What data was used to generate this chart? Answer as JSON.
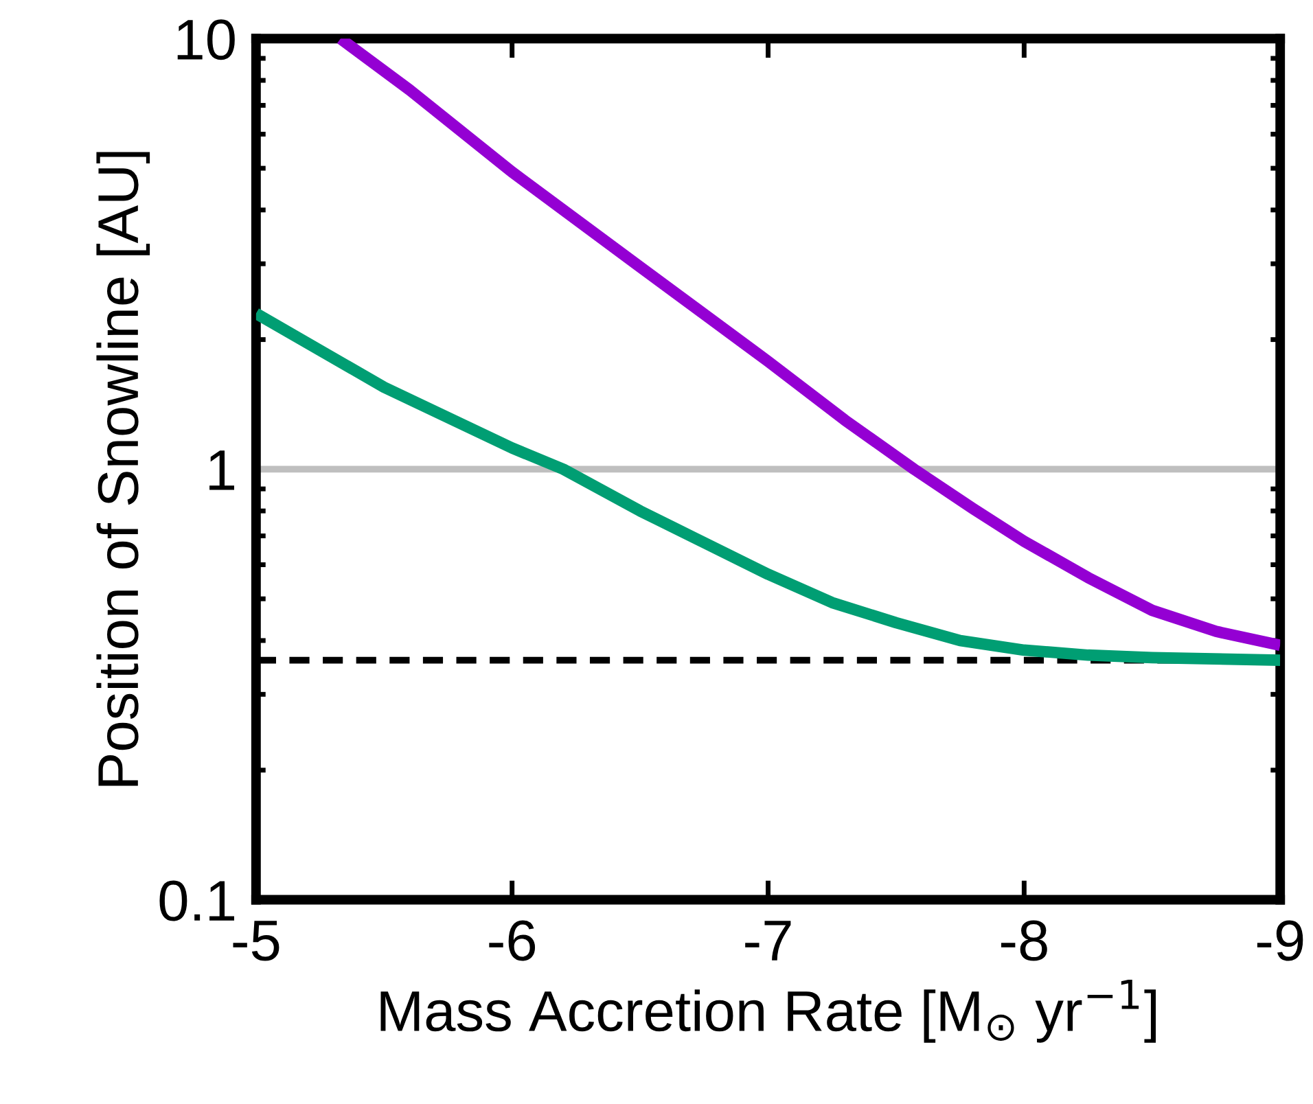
{
  "chart_data": {
    "type": "line",
    "xlabel": "Mass Accretion Rate [M$_{⊙}$ yr$^{−1}$]",
    "ylabel": "Position of Snowline [AU]",
    "log": "y",
    "xlim": [
      -5,
      -9
    ],
    "ylim": [
      0.1,
      10
    ],
    "xticks": [
      -5,
      -6,
      -7,
      -8,
      -9
    ],
    "yticks": [
      0.1,
      1,
      10
    ],
    "grid": false,
    "legend": false,
    "series": [
      {
        "color": "#9400d3",
        "x": [
          -5.33,
          -5.6,
          -6.0,
          -6.5,
          -7.0,
          -7.3,
          -7.57,
          -7.8,
          -8.0,
          -8.25,
          -8.5,
          -8.75,
          -9.0
        ],
        "values": [
          10,
          7.6,
          4.9,
          2.95,
          1.78,
          1.3,
          1.0,
          0.81,
          0.68,
          0.56,
          0.47,
          0.42,
          0.39
        ]
      },
      {
        "color": "#009e73",
        "x": [
          -5.0,
          -5.5,
          -6.0,
          -6.2,
          -6.5,
          -7.0,
          -7.25,
          -7.5,
          -7.75,
          -8.0,
          -8.25,
          -8.5,
          -9.0
        ],
        "values": [
          2.3,
          1.55,
          1.12,
          1.0,
          0.8,
          0.57,
          0.49,
          0.44,
          0.4,
          0.38,
          0.37,
          0.365,
          0.36
        ]
      }
    ],
    "ref_lines": [
      {
        "axis": "y",
        "value": 1,
        "color": "#bfbfbf",
        "line_style": "solid"
      },
      {
        "axis": "y",
        "value": 0.36,
        "color": "#000000",
        "line_style": "dashed"
      }
    ]
  }
}
